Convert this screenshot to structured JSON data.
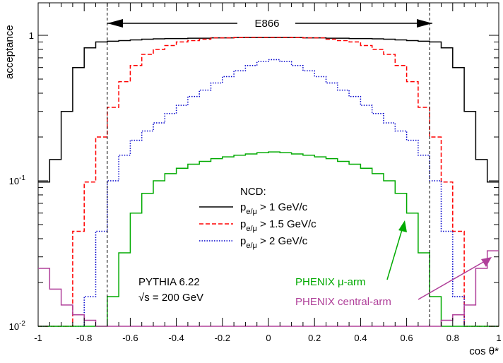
{
  "chart_data": {
    "type": "line",
    "scale": {
      "y": "log",
      "x": "linear"
    },
    "xlim": [
      -1,
      1
    ],
    "ylim": [
      0.01,
      1.4
    ],
    "xlabel": "cos θ*",
    "ylabel": "acceptance",
    "x_ticks": [
      "-1",
      "-0.8",
      "-0.6",
      "-0.4",
      "-0.2",
      "0",
      "0.2",
      "0.4",
      "0.6",
      "0.8",
      "1"
    ],
    "y_ticks": [
      {
        "label": "1",
        "value": 1
      },
      {
        "label": "10",
        "sup": "-1",
        "value": 0.1
      },
      {
        "label": "10",
        "sup": "-2",
        "value": 0.01
      }
    ],
    "bin_edges": [
      -1,
      -0.95,
      -0.9,
      -0.85,
      -0.8,
      -0.75,
      -0.7,
      -0.65,
      -0.6,
      -0.55,
      -0.5,
      -0.45,
      -0.4,
      -0.35,
      -0.3,
      -0.25,
      -0.2,
      -0.15,
      -0.1,
      -0.05,
      0,
      0.05,
      0.1,
      0.15,
      0.2,
      0.25,
      0.3,
      0.35,
      0.4,
      0.45,
      0.5,
      0.55,
      0.6,
      0.65,
      0.7,
      0.75,
      0.8,
      0.85,
      0.9,
      0.95,
      1
    ],
    "series": [
      {
        "key": "p1",
        "color": "#000000",
        "dash": "solid",
        "values": [
          0.098,
          0.14,
          0.3,
          0.6,
          0.82,
          0.9,
          0.91,
          0.92,
          0.93,
          0.94,
          0.945,
          0.95,
          0.95,
          0.955,
          0.955,
          0.96,
          0.96,
          0.965,
          0.965,
          0.965,
          0.965,
          0.965,
          0.965,
          0.96,
          0.96,
          0.955,
          0.955,
          0.95,
          0.95,
          0.945,
          0.94,
          0.93,
          0.92,
          0.91,
          0.9,
          0.82,
          0.6,
          0.3,
          0.14,
          0.098
        ]
      },
      {
        "key": "p15",
        "color": "#ff0000",
        "dash": "6,3",
        "values": [
          0.01,
          0.01,
          0.01,
          0.045,
          0.098,
          0.2,
          0.32,
          0.48,
          0.62,
          0.74,
          0.8,
          0.85,
          0.9,
          0.92,
          0.94,
          0.96,
          0.96,
          0.965,
          0.97,
          0.97,
          0.97,
          0.97,
          0.965,
          0.96,
          0.96,
          0.94,
          0.92,
          0.9,
          0.85,
          0.8,
          0.74,
          0.62,
          0.48,
          0.32,
          0.2,
          0.098,
          0.045,
          0.01,
          0.01,
          0.01
        ]
      },
      {
        "key": "p2",
        "color": "#0000cc",
        "dash": "1.5,2",
        "values": [
          0.01,
          0.01,
          0.01,
          0.01,
          0.016,
          0.045,
          0.1,
          0.15,
          0.19,
          0.22,
          0.25,
          0.29,
          0.33,
          0.38,
          0.42,
          0.47,
          0.52,
          0.57,
          0.62,
          0.66,
          0.68,
          0.66,
          0.62,
          0.57,
          0.52,
          0.47,
          0.42,
          0.38,
          0.33,
          0.29,
          0.25,
          0.22,
          0.19,
          0.15,
          0.1,
          0.045,
          0.016,
          0.01,
          0.01,
          0.01
        ]
      },
      {
        "key": "mu",
        "color": "#00aa00",
        "dash": "solid",
        "values": [
          0.01,
          0.01,
          0.01,
          0.01,
          0.01,
          0.01,
          0.016,
          0.032,
          0.06,
          0.082,
          0.1,
          0.112,
          0.122,
          0.13,
          0.136,
          0.142,
          0.146,
          0.15,
          0.153,
          0.156,
          0.158,
          0.156,
          0.153,
          0.15,
          0.146,
          0.142,
          0.136,
          0.13,
          0.122,
          0.112,
          0.1,
          0.082,
          0.06,
          0.032,
          0.016,
          0.01,
          0.01,
          0.01,
          0.01,
          0.01
        ]
      },
      {
        "key": "central",
        "color": "#b0409a",
        "dash": "solid",
        "values": [
          0.025,
          0.018,
          0.014,
          0.012,
          0.011,
          0.01,
          0.01,
          0.01,
          0.01,
          0.01,
          0.01,
          0.01,
          0.01,
          0.01,
          0.01,
          0.01,
          0.01,
          0.01,
          0.01,
          0.01,
          0.01,
          0.01,
          0.01,
          0.01,
          0.01,
          0.01,
          0.01,
          0.01,
          0.01,
          0.01,
          0.01,
          0.01,
          0.01,
          0.01,
          0.01,
          0.011,
          0.012,
          0.014,
          0.025,
          0.033
        ]
      }
    ],
    "vlines": [
      -0.7,
      0.7
    ],
    "e866_label": "E866",
    "legend": {
      "title": "NCD:",
      "entries": [
        {
          "sym": "p",
          "sub": "e/μ",
          "text": " > 1 GeV/c",
          "series": "p1"
        },
        {
          "sym": "p",
          "sub": "e/μ",
          "text": " > 1.5 GeV/c",
          "series": "p15"
        },
        {
          "sym": "p",
          "sub": "e/μ",
          "text": " > 2 GeV/c",
          "series": "p2"
        }
      ]
    },
    "annotations": {
      "generator": "PYTHIA 6.22",
      "energy": "√s = 200 GeV",
      "mu_arm": "PHENIX μ-arm",
      "central_arm": "PHENIX central-arm"
    }
  }
}
